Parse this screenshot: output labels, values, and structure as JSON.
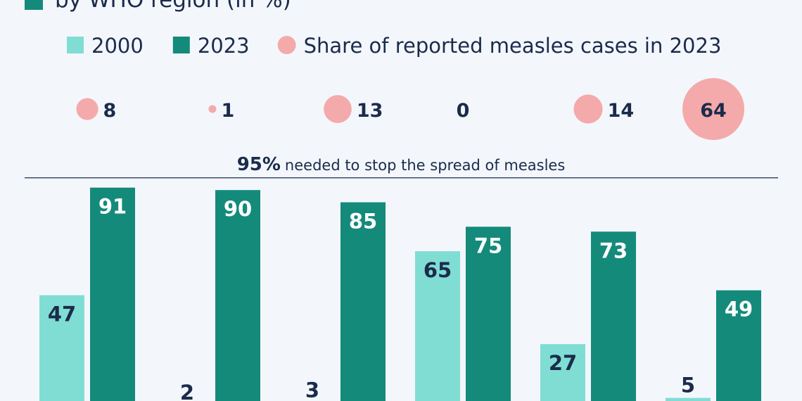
{
  "chart_data": {
    "type": "bar",
    "title": "by WHO region (in %)",
    "series": [
      {
        "name": "2000",
        "color": "#80ddd4",
        "values": [
          47,
          2,
          3,
          65,
          27,
          5
        ]
      },
      {
        "name": "2023",
        "color": "#148a7b",
        "values": [
          91,
          90,
          85,
          75,
          73,
          49
        ]
      }
    ],
    "bubbles": {
      "name": "Share of reported measles cases in 2023",
      "color": "#f4aaaa",
      "values": [
        8,
        1,
        13,
        0,
        14,
        64
      ]
    },
    "reference": {
      "value": 95,
      "label": "95%",
      "text": "needed to stop the spread of measles"
    }
  }
}
